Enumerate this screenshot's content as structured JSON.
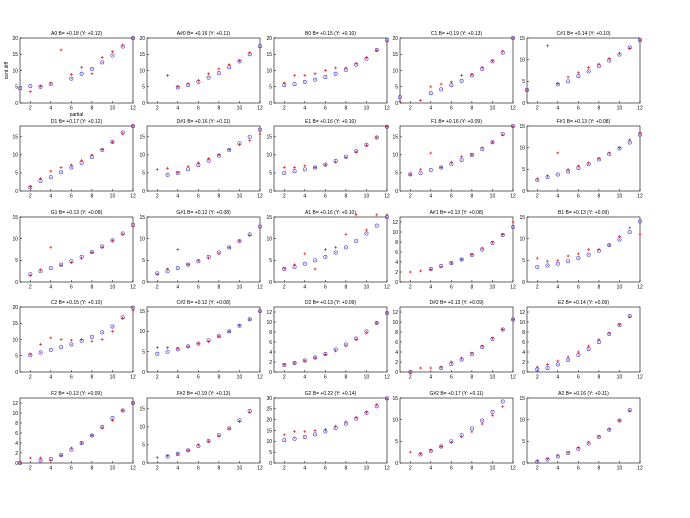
{
  "figure": {
    "ylabel": "cent diff",
    "xlabel": "partial",
    "xlim": [
      1,
      12
    ],
    "xticks": [
      2,
      4,
      6,
      8,
      10,
      12
    ],
    "series_colors": {
      "red_plus": "#e8191b",
      "blue_circle": "#3d3dd6",
      "magenta_dot": "#b01080"
    }
  },
  "chart_data": [
    {
      "type": "scatter",
      "title": "A0  B= +0.18 (Y: +0.12)",
      "ylim": [
        0,
        20
      ],
      "yticks": [
        0,
        5,
        10,
        15,
        20
      ],
      "x": [
        2,
        3,
        4,
        5,
        6,
        7,
        8,
        9,
        10,
        11,
        12
      ],
      "red": [
        3.5,
        5.2,
        6.2,
        16.3,
        8.8,
        11.0,
        9.0,
        14.0,
        15.8,
        17.8,
        20.0
      ],
      "blue": [
        5.2,
        5.0,
        5.8,
        null,
        7.5,
        9.0,
        10.5,
        12.5,
        14.6,
        17.4,
        20.0
      ],
      "extra_blue": [
        [
          1,
          4.5
        ]
      ]
    },
    {
      "type": "scatter",
      "title": "A#0  B= +0.16 (Y: +0.11)",
      "ylim": [
        0,
        20
      ],
      "yticks": [
        0,
        5,
        10,
        15,
        20
      ],
      "x": [
        2,
        3,
        4,
        5,
        6,
        7,
        8,
        9,
        10,
        11,
        12
      ],
      "red": [
        null,
        8.5,
        5.0,
        6.0,
        7.0,
        9.0,
        10.5,
        11.8,
        13.0,
        15.5,
        17.0
      ],
      "blue": [
        null,
        null,
        4.8,
        5.5,
        6.5,
        7.8,
        9.2,
        11.0,
        12.8,
        15.0,
        17.5
      ]
    },
    {
      "type": "scatter",
      "title": "B0  B= +0.15 (Y: +0.10)",
      "ylim": [
        0,
        20
      ],
      "yticks": [
        0,
        5,
        10,
        15,
        20
      ],
      "x": [
        2,
        3,
        4,
        5,
        6,
        7,
        8,
        9,
        10,
        11,
        12
      ],
      "red": [
        6.2,
        8.5,
        8.5,
        9.0,
        10.0,
        10.8,
        10.8,
        12.2,
        14.0,
        16.2,
        18.8
      ],
      "blue": [
        5.5,
        5.8,
        6.5,
        7.2,
        8.0,
        9.0,
        10.2,
        11.8,
        13.6,
        16.3,
        19.5
      ]
    },
    {
      "type": "scatter",
      "title": "C1  B= +0.19 (Y: +0.13)",
      "ylim": [
        0,
        20
      ],
      "yticks": [
        0,
        5,
        10,
        15,
        20
      ],
      "x": [
        1,
        2,
        3,
        4,
        5,
        6,
        7,
        8,
        9,
        10,
        11,
        12
      ],
      "red": [
        0.5,
        null,
        0.8,
        5.0,
        5.8,
        6.5,
        8.5,
        8.8,
        11.0,
        13.0,
        16.0,
        20.0
      ],
      "blue": [
        1.8,
        null,
        null,
        3.0,
        4.2,
        5.5,
        6.8,
        8.5,
        10.5,
        12.8,
        15.5,
        20.0
      ]
    },
    {
      "type": "scatter",
      "title": "C#1  B= +0.14 (Y: +0.10)",
      "ylim": [
        0,
        15
      ],
      "yticks": [
        0,
        5,
        10,
        15
      ],
      "x": [
        1,
        2,
        3,
        4,
        5,
        6,
        7,
        8,
        9,
        10,
        11,
        12
      ],
      "red": [
        3.0,
        null,
        13.2,
        4.5,
        6.0,
        7.0,
        8.2,
        9.0,
        10.3,
        11.5,
        12.6,
        14.5
      ],
      "blue": [
        3.0,
        null,
        null,
        4.3,
        5.0,
        6.2,
        7.3,
        8.5,
        9.8,
        11.2,
        12.8,
        14.5
      ]
    },
    {
      "type": "scatter",
      "title": "D1  B= +0.17 (Y: +0.12)",
      "ylim": [
        0,
        18
      ],
      "yticks": [
        0,
        5,
        10,
        15
      ],
      "x": [
        2,
        3,
        4,
        5,
        6,
        7,
        8,
        9,
        10,
        11,
        12
      ],
      "red": [
        1.2,
        3.5,
        5.5,
        6.5,
        7.2,
        8.5,
        10.0,
        11.5,
        13.5,
        15.8,
        18.0
      ],
      "blue": [
        1.0,
        2.8,
        3.8,
        5.2,
        6.5,
        7.8,
        9.4,
        11.4,
        13.6,
        16.2,
        18.0
      ]
    },
    {
      "type": "scatter",
      "title": "D#1  B= +0.16 (Y: +0.11)",
      "ylim": [
        0,
        18
      ],
      "yticks": [
        0,
        5,
        10,
        15
      ],
      "x": [
        2,
        3,
        4,
        5,
        6,
        7,
        8,
        9,
        10,
        11,
        12
      ],
      "red": [
        6.0,
        6.3,
        5.2,
        6.8,
        7.8,
        9.0,
        10.0,
        11.5,
        12.8,
        14.0,
        15.8
      ],
      "blue": [
        null,
        4.5,
        5.0,
        6.0,
        7.2,
        8.4,
        9.8,
        11.4,
        13.2,
        15.0,
        17.0
      ]
    },
    {
      "type": "scatter",
      "title": "E1  B= +0.16 (Y: +0.10)",
      "ylim": [
        0,
        18
      ],
      "yticks": [
        0,
        5,
        10,
        15
      ],
      "x": [
        2,
        3,
        4,
        5,
        6,
        7,
        8,
        9,
        10,
        11,
        12
      ],
      "red": [
        6.5,
        6.5,
        7.0,
        6.5,
        7.2,
        8.0,
        9.3,
        10.8,
        12.6,
        14.8,
        17.8
      ],
      "blue": [
        5.0,
        5.5,
        6.0,
        6.5,
        7.3,
        8.3,
        9.5,
        11.0,
        12.8,
        14.8,
        17.8
      ]
    },
    {
      "type": "scatter",
      "title": "F1  B= +0.16 (Y: +0.09)",
      "ylim": [
        0,
        18
      ],
      "yticks": [
        0,
        5,
        10,
        15
      ],
      "x": [
        2,
        3,
        4,
        5,
        6,
        7,
        8,
        9,
        10,
        11,
        12
      ],
      "red": [
        4.5,
        6.0,
        10.5,
        6.5,
        8.0,
        9.5,
        10.0,
        12.0,
        13.5,
        15.5,
        17.8
      ],
      "blue": [
        4.6,
        5.0,
        5.8,
        6.5,
        7.5,
        8.6,
        10.0,
        11.6,
        13.5,
        15.8,
        18.0
      ]
    },
    {
      "type": "scatter",
      "title": "F#1  B= +0.13 (Y: +0.08)",
      "ylim": [
        0,
        15
      ],
      "yticks": [
        0,
        5,
        10,
        15
      ],
      "x": [
        2,
        3,
        4,
        5,
        6,
        7,
        8,
        9,
        10,
        11,
        12
      ],
      "red": [
        2.8,
        3.5,
        8.8,
        5.0,
        5.8,
        6.5,
        7.5,
        8.8,
        10.0,
        11.8,
        13.5
      ],
      "blue": [
        2.5,
        3.2,
        3.8,
        4.5,
        5.3,
        6.2,
        7.3,
        8.5,
        9.8,
        11.2,
        13.0
      ]
    },
    {
      "type": "scatter",
      "title": "G1  B= +0.13 (Y: +0.08)",
      "ylim": [
        0,
        15
      ],
      "yticks": [
        0,
        5,
        10,
        15
      ],
      "x": [
        2,
        3,
        4,
        5,
        6,
        7,
        8,
        9,
        10,
        11,
        12
      ],
      "red": [
        1.5,
        2.8,
        8.0,
        3.8,
        4.5,
        5.5,
        6.8,
        8.0,
        9.5,
        11.0,
        12.8
      ],
      "blue": [
        1.8,
        2.5,
        3.2,
        4.0,
        4.8,
        5.8,
        6.9,
        8.2,
        9.6,
        11.2,
        13.2
      ]
    },
    {
      "type": "scatter",
      "title": "G#1  B= +0.12 (Y: +0.08)",
      "ylim": [
        0,
        15
      ],
      "yticks": [
        0,
        5,
        10,
        15
      ],
      "x": [
        2,
        3,
        4,
        5,
        6,
        7,
        8,
        9,
        10,
        11,
        12
      ],
      "red": [
        1.8,
        3.0,
        7.5,
        4.0,
        5.0,
        5.5,
        6.5,
        8.0,
        9.5,
        10.8,
        12.5
      ],
      "blue": [
        2.0,
        2.5,
        3.2,
        4.0,
        4.8,
        5.8,
        6.8,
        8.0,
        9.4,
        11.0,
        12.8
      ]
    },
    {
      "type": "scatter",
      "title": "A1  B= +0.16 (Y: +0.10)",
      "ylim": [
        0,
        15
      ],
      "yticks": [
        0,
        5,
        10,
        15
      ],
      "x": [
        2,
        3,
        4,
        5,
        6,
        7,
        8,
        9,
        10,
        11,
        12
      ],
      "red": [
        3.2,
        4.0,
        6.5,
        3.0,
        7.5,
        8.0,
        11.0,
        15.5,
        12.0,
        15.5,
        15.5
      ],
      "blue": [
        3.0,
        3.5,
        4.2,
        5.0,
        5.8,
        6.8,
        8.0,
        9.5,
        11.2,
        13.0,
        15.0
      ]
    },
    {
      "type": "scatter",
      "title": "A#1  B= +0.13 (Y: +0.08)",
      "ylim": [
        0,
        13
      ],
      "yticks": [
        0,
        2,
        4,
        6,
        8,
        10,
        12
      ],
      "x": [
        2,
        3,
        4,
        5,
        6,
        7,
        8,
        9,
        10,
        11,
        12
      ],
      "red": [
        2.0,
        2.2,
        2.5,
        3.0,
        3.8,
        4.5,
        5.5,
        6.8,
        8.0,
        9.5,
        12.0
      ],
      "blue": [
        null,
        null,
        2.6,
        3.2,
        3.8,
        4.5,
        5.4,
        6.5,
        7.8,
        9.4,
        11.0
      ]
    },
    {
      "type": "scatter",
      "title": "B1  B= +0.13 (Y: +0.09)",
      "ylim": [
        0,
        15
      ],
      "yticks": [
        0,
        5,
        10,
        15
      ],
      "x": [
        2,
        3,
        4,
        5,
        6,
        7,
        8,
        9,
        10,
        11,
        12
      ],
      "red": [
        5.5,
        4.8,
        5.0,
        6.0,
        6.5,
        7.5,
        7.5,
        8.5,
        10.5,
        12.5,
        11.0
      ],
      "blue": [
        3.5,
        3.8,
        4.2,
        4.8,
        5.5,
        6.3,
        7.2,
        8.5,
        9.8,
        11.5,
        14.0
      ]
    },
    {
      "type": "scatter",
      "title": "C2  B= +0.15 (Y: +0.10)",
      "ylim": [
        0,
        20
      ],
      "yticks": [
        0,
        5,
        10,
        15,
        20
      ],
      "x": [
        2,
        3,
        4,
        5,
        6,
        7,
        8,
        9,
        10,
        11,
        12
      ],
      "red": [
        5.5,
        8.5,
        10.5,
        10.0,
        9.8,
        10.0,
        9.5,
        10.0,
        12.5,
        16.5,
        19.0
      ],
      "blue": [
        5.2,
        6.0,
        6.8,
        7.6,
        8.5,
        9.6,
        10.8,
        12.2,
        14.0,
        16.8,
        19.8
      ]
    },
    {
      "type": "scatter",
      "title": "C#2  B= +0.12 (Y: +0.08)",
      "ylim": [
        0,
        16
      ],
      "yticks": [
        0,
        5,
        10,
        15
      ],
      "x": [
        2,
        3,
        4,
        5,
        6,
        7,
        8,
        9,
        10,
        11,
        12
      ],
      "red": [
        6.0,
        6.0,
        5.8,
        6.2,
        7.0,
        7.5,
        8.8,
        10.0,
        11.5,
        13.0,
        15.0
      ],
      "blue": [
        4.5,
        5.0,
        5.6,
        6.3,
        7.0,
        7.8,
        8.8,
        10.0,
        11.4,
        13.0,
        15.0
      ]
    },
    {
      "type": "scatter",
      "title": "D2  B= +0.13 (Y: +0.09)",
      "ylim": [
        0,
        13
      ],
      "yticks": [
        0,
        2,
        4,
        6,
        8,
        10,
        12
      ],
      "x": [
        2,
        3,
        4,
        5,
        6,
        7,
        8,
        9,
        10,
        11,
        12
      ],
      "red": [
        1.5,
        1.8,
        2.2,
        2.8,
        3.5,
        4.2,
        5.2,
        6.5,
        7.8,
        9.8,
        11.8
      ],
      "blue": [
        1.4,
        1.8,
        2.3,
        2.9,
        3.6,
        4.5,
        5.5,
        6.7,
        8.1,
        9.8,
        11.8
      ]
    },
    {
      "type": "scatter",
      "title": "D#2  B= +0.13 (Y: +0.09)",
      "ylim": [
        0,
        13
      ],
      "yticks": [
        0,
        2,
        4,
        6,
        8,
        10,
        12
      ],
      "x": [
        2,
        3,
        4,
        5,
        6,
        7,
        8,
        9,
        10,
        11,
        12
      ],
      "red": [
        0,
        0.8,
        0.8,
        1.0,
        2.0,
        2.8,
        3.8,
        5.2,
        6.8,
        8.5,
        10.5
      ],
      "blue": [
        0,
        null,
        null,
        0.8,
        1.6,
        2.5,
        3.6,
        5.0,
        6.6,
        8.5,
        10.5
      ]
    },
    {
      "type": "scatter",
      "title": "E2  B= +0.14 (Y: +0.09)",
      "ylim": [
        0,
        13
      ],
      "yticks": [
        0,
        2,
        4,
        6,
        8,
        10,
        12
      ],
      "x": [
        2,
        3,
        4,
        5,
        6,
        7,
        8,
        9,
        10,
        11
      ],
      "red": [
        1.0,
        1.5,
        2.2,
        3.0,
        4.0,
        5.2,
        6.5,
        7.8,
        9.5,
        11.0
      ],
      "blue": [
        0.5,
        0.8,
        1.5,
        2.4,
        3.4,
        4.6,
        6.0,
        7.6,
        9.4,
        11.2
      ]
    },
    {
      "type": "scatter",
      "title": "F2  B= +0.13 (Y: +0.09)",
      "ylim": [
        0,
        13
      ],
      "yticks": [
        0,
        2,
        4,
        6,
        8,
        10,
        12
      ],
      "x": [
        1,
        2,
        3,
        4,
        5,
        6,
        7,
        8,
        9,
        10,
        11,
        12
      ],
      "red": [
        0,
        1.0,
        1.0,
        0.5,
        1.5,
        3.0,
        4.0,
        5.5,
        7.0,
        8.5,
        10.5,
        12.0
      ],
      "blue": [
        0,
        null,
        0.5,
        0.8,
        1.6,
        2.7,
        4.0,
        5.5,
        7.2,
        9.0,
        10.5,
        12.0
      ]
    },
    {
      "type": "scatter",
      "title": "F#2  B= +0.19 (Y: +0.13)",
      "ylim": [
        0,
        18
      ],
      "yticks": [
        0,
        5,
        10,
        15
      ],
      "x": [
        2,
        3,
        4,
        5,
        6,
        7,
        8,
        9,
        10,
        11
      ],
      "red": [
        1.5,
        2.0,
        2.5,
        3.5,
        5.0,
        6.0,
        7.5,
        9.5,
        11.5,
        14.0
      ],
      "blue": [
        null,
        1.8,
        2.5,
        3.5,
        4.7,
        6.1,
        7.7,
        9.6,
        11.8,
        14.4
      ]
    },
    {
      "type": "scatter",
      "title": "G2  B= +0.22 (Y: +0.14)",
      "ylim": [
        0,
        30
      ],
      "yticks": [
        0,
        5,
        10,
        15,
        20,
        25,
        30
      ],
      "x": [
        2,
        3,
        4,
        5,
        6,
        7,
        8,
        9,
        10,
        11,
        12
      ],
      "red": [
        13.0,
        14.5,
        14.5,
        15.0,
        15.5,
        17.0,
        19.0,
        21.0,
        23.5,
        27.0,
        29.5
      ],
      "blue": [
        10.5,
        11.2,
        12.0,
        13.2,
        14.6,
        16.2,
        18.2,
        20.5,
        23.2,
        26.2,
        29.8
      ]
    },
    {
      "type": "scatter",
      "title": "G#2  B= +0.17 (Y: +0.11)",
      "ylim": [
        0,
        15
      ],
      "yticks": [
        0,
        5,
        10,
        15
      ],
      "x": [
        2,
        3,
        4,
        5,
        6,
        7,
        8,
        9,
        10,
        11
      ],
      "red": [
        2.5,
        2.2,
        3.0,
        3.8,
        4.8,
        6.0,
        7.2,
        9.0,
        11.0,
        13.0
      ],
      "blue": [
        null,
        2.0,
        2.8,
        3.8,
        5.0,
        6.4,
        8.0,
        9.8,
        11.8,
        14.2
      ]
    },
    {
      "type": "scatter",
      "title": "A2  B= +0.16 (Y: +0.11)",
      "ylim": [
        0,
        15
      ],
      "yticks": [
        0,
        5,
        10,
        15
      ],
      "x": [
        2,
        3,
        4,
        5,
        6,
        7,
        8,
        9,
        10,
        11
      ],
      "red": [
        0.5,
        1.0,
        1.8,
        2.5,
        3.5,
        4.8,
        6.2,
        7.8,
        9.8,
        12.0
      ],
      "blue": [
        0.3,
        0.8,
        1.5,
        2.3,
        3.3,
        4.5,
        6.0,
        7.7,
        9.8,
        12.2
      ]
    }
  ]
}
